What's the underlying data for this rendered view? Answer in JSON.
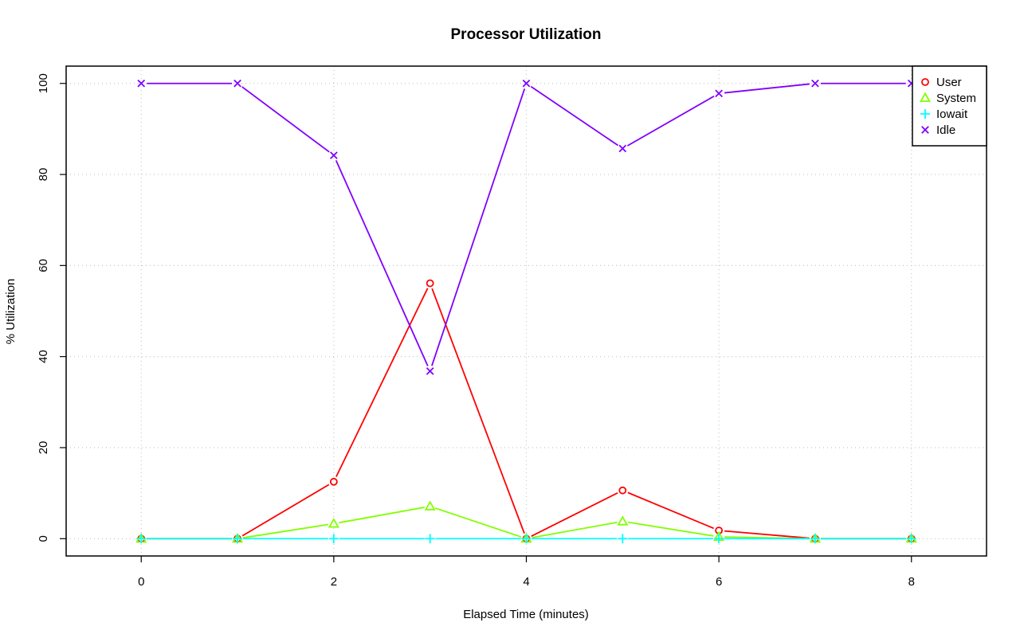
{
  "chart_data": {
    "type": "line",
    "title": "Processor Utilization",
    "xlabel": "Elapsed Time (minutes)",
    "ylabel": "% Utilization",
    "x": [
      0,
      1,
      2,
      3,
      4,
      5,
      6,
      7,
      8
    ],
    "xlim": [
      -0.78,
      8.78
    ],
    "ylim": [
      -3.8,
      103.8
    ],
    "xticks": [
      0,
      2,
      4,
      6,
      8
    ],
    "yticks": [
      0,
      20,
      40,
      60,
      80,
      100
    ],
    "grid": true,
    "legend_position": "top-right",
    "series": [
      {
        "name": "User",
        "marker": "circle",
        "color": "#ff0000",
        "values": [
          0,
          0,
          12.5,
          56.1,
          0,
          10.6,
          1.8,
          0,
          0
        ]
      },
      {
        "name": "System",
        "marker": "triangle",
        "color": "#80ff00",
        "values": [
          0,
          0,
          3.3,
          7.1,
          0,
          3.8,
          0.4,
          0,
          0
        ]
      },
      {
        "name": "Iowait",
        "marker": "plus",
        "color": "#00ffff",
        "values": [
          0,
          0,
          0,
          0,
          0,
          0,
          0,
          0,
          0
        ]
      },
      {
        "name": "Idle",
        "marker": "cross",
        "color": "#8000ff",
        "values": [
          100,
          100,
          84.2,
          36.8,
          100,
          85.7,
          97.8,
          100,
          100
        ]
      }
    ]
  }
}
